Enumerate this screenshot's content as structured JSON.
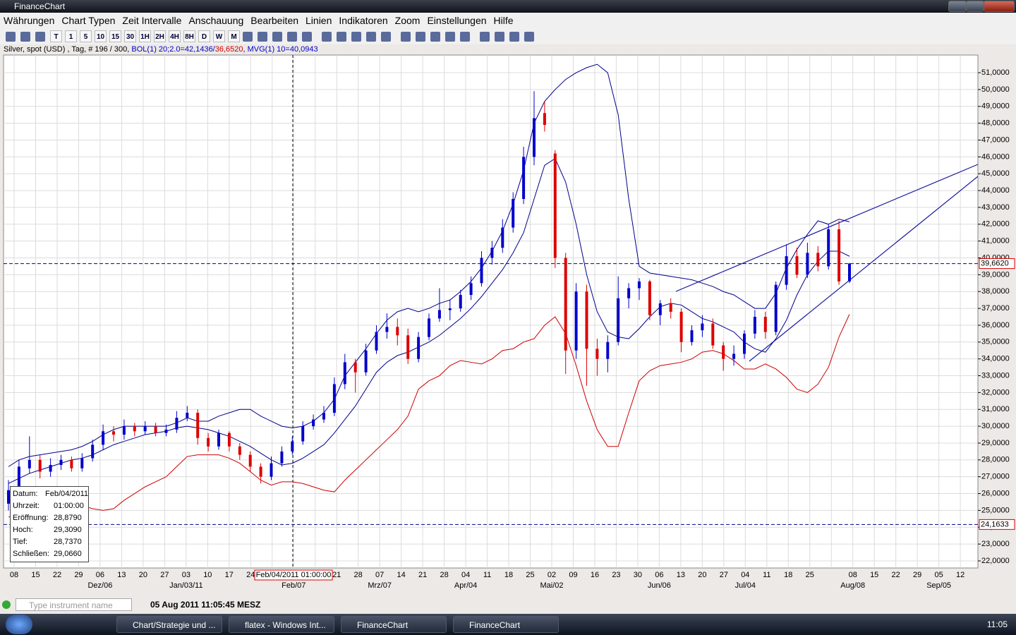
{
  "window": {
    "title": "FinanceChart"
  },
  "menu": [
    "Währungen",
    "Chart Typen",
    "Zeit Intervalle",
    "Anschauung",
    "Bearbeiten",
    "Linien",
    "Indikatoren",
    "Zoom",
    "Einstellungen",
    "Hilfe"
  ],
  "toolbar": {
    "intervals": [
      "T",
      "1",
      "5",
      "10",
      "15",
      "30",
      "1H",
      "2H",
      "4H",
      "8H",
      "D",
      "W",
      "M"
    ]
  },
  "info": {
    "instrument": "Silver, spot (USD) , Tag, # 196 / 300,",
    "bol": "BOL(1) 20;2.0=42,1436/",
    "bol_low": "36,6520",
    "mvg": ", MVG(1) 10=40,0943"
  },
  "chart_data": {
    "type": "candlestick",
    "up_color": "#0000cc",
    "down_color": "#dd0000",
    "grid": true,
    "ylim": [
      21.58,
      52.05
    ],
    "yticks": [
      {
        "value": 22,
        "label": "22,0000"
      },
      {
        "value": 23,
        "label": "23,0000"
      },
      {
        "value": 24,
        "label": "24,0000"
      },
      {
        "value": 25,
        "label": "25,0000"
      },
      {
        "value": 26,
        "label": "26,0000"
      },
      {
        "value": 27,
        "label": "27,0000"
      },
      {
        "value": 28,
        "label": "28,0000"
      },
      {
        "value": 29,
        "label": "29,0000"
      },
      {
        "value": 30,
        "label": "30,0000"
      },
      {
        "value": 31,
        "label": "31,0000"
      },
      {
        "value": 32,
        "label": "32,0000"
      },
      {
        "value": 33,
        "label": "33,0000"
      },
      {
        "value": 34,
        "label": "34,0000"
      },
      {
        "value": 35,
        "label": "35,0000"
      },
      {
        "value": 36,
        "label": "36,0000"
      },
      {
        "value": 37,
        "label": "37,0000"
      },
      {
        "value": 38,
        "label": "38,0000"
      },
      {
        "value": 39,
        "label": "39,0000"
      },
      {
        "value": 40,
        "label": "40,0000"
      },
      {
        "value": 41,
        "label": "41,0000"
      },
      {
        "value": 42,
        "label": "42,0000"
      },
      {
        "value": 43,
        "label": "43,0000"
      },
      {
        "value": 44,
        "label": "44,0000"
      },
      {
        "value": 45,
        "label": "45,0000"
      },
      {
        "value": 46,
        "label": "46,0000"
      },
      {
        "value": 47,
        "label": "47,0000"
      },
      {
        "value": 48,
        "label": "48,0000"
      },
      {
        "value": 49,
        "label": "49,0000"
      },
      {
        "value": 50,
        "label": "50,0000"
      },
      {
        "value": 51,
        "label": "51,0000"
      }
    ],
    "x_labels": [
      "08",
      "15",
      "22",
      "29",
      "06",
      "13",
      "20",
      "27",
      "03",
      "10",
      "17",
      "24",
      null,
      null,
      null,
      "21",
      "28",
      "07",
      "14",
      "21",
      "28",
      "04",
      "11",
      "18",
      "25",
      "02",
      "09",
      "16",
      "23",
      "30",
      "06",
      "13",
      "20",
      "27",
      "04",
      "11",
      "18",
      "25",
      null,
      "08",
      "15",
      "22",
      "29",
      "05",
      "12"
    ],
    "month_labels": [
      null,
      null,
      null,
      null,
      "Dez/06",
      null,
      null,
      null,
      "Jan/03/11",
      null,
      null,
      null,
      null,
      "Feb/07",
      null,
      null,
      null,
      "Mrz/07",
      null,
      null,
      null,
      "Apr/04",
      null,
      null,
      null,
      "Mai/02",
      null,
      null,
      null,
      null,
      "Jun/06",
      null,
      null,
      null,
      "Jul/04",
      null,
      null,
      null,
      null,
      "Aug/08",
      null,
      null,
      null,
      "Sep/05",
      null
    ],
    "candles": [
      [
        25.4,
        26.8,
        25.0,
        26.2
      ],
      [
        26.3,
        28.0,
        26.0,
        27.6
      ],
      [
        27.5,
        29.4,
        27.2,
        28.0
      ],
      [
        28.0,
        28.3,
        26.9,
        27.3
      ],
      [
        27.3,
        28.1,
        27.0,
        27.7
      ],
      [
        27.7,
        28.3,
        27.4,
        28.0
      ],
      [
        28.0,
        28.2,
        27.3,
        27.5
      ],
      [
        27.5,
        28.4,
        27.3,
        28.1
      ],
      [
        28.1,
        29.2,
        27.9,
        28.9
      ],
      [
        28.9,
        30.1,
        28.6,
        29.7
      ],
      [
        29.7,
        30.0,
        29.1,
        29.5
      ],
      [
        29.5,
        30.4,
        29.2,
        30.0
      ],
      [
        30.0,
        30.2,
        29.4,
        29.7
      ],
      [
        29.7,
        30.3,
        29.5,
        30.0
      ],
      [
        30.0,
        30.2,
        29.4,
        29.6
      ],
      [
        29.6,
        30.1,
        29.4,
        29.8
      ],
      [
        29.8,
        30.9,
        29.6,
        30.5
      ],
      [
        30.5,
        31.2,
        30.3,
        30.8
      ],
      [
        30.8,
        31.0,
        28.9,
        29.3
      ],
      [
        29.3,
        29.6,
        28.5,
        28.8
      ],
      [
        28.8,
        29.8,
        28.6,
        29.6
      ],
      [
        29.6,
        29.7,
        28.5,
        28.8
      ],
      [
        28.8,
        29.0,
        28.0,
        28.3
      ],
      [
        28.3,
        28.5,
        27.3,
        27.6
      ],
      [
        27.6,
        27.8,
        26.6,
        27.0
      ],
      [
        27.0,
        28.2,
        26.8,
        27.8
      ],
      [
        27.8,
        28.8,
        27.6,
        28.5
      ],
      [
        28.5,
        29.4,
        28.3,
        29.1
      ],
      [
        29.1,
        30.3,
        28.9,
        30.0
      ],
      [
        30.0,
        30.7,
        29.8,
        30.4
      ],
      [
        30.4,
        31.2,
        30.2,
        30.8
      ],
      [
        30.8,
        32.9,
        30.6,
        32.5
      ],
      [
        32.5,
        34.3,
        32.2,
        33.8
      ],
      [
        33.8,
        34.0,
        32.0,
        33.2
      ],
      [
        33.2,
        34.9,
        33.0,
        34.5
      ],
      [
        34.5,
        36.0,
        34.3,
        35.6
      ],
      [
        35.6,
        36.7,
        35.2,
        35.9
      ],
      [
        35.9,
        36.4,
        34.8,
        35.4
      ],
      [
        35.4,
        35.8,
        33.7,
        34.0
      ],
      [
        34.0,
        35.6,
        33.8,
        35.3
      ],
      [
        35.3,
        36.7,
        35.1,
        36.4
      ],
      [
        36.4,
        38.2,
        36.2,
        36.9
      ],
      [
        36.9,
        37.5,
        36.3,
        37.0
      ],
      [
        37.0,
        38.1,
        36.8,
        37.8
      ],
      [
        37.8,
        38.9,
        37.5,
        38.5
      ],
      [
        38.5,
        40.4,
        38.3,
        40.0
      ],
      [
        40.0,
        41.0,
        39.6,
        40.6
      ],
      [
        40.6,
        42.3,
        40.3,
        41.8
      ],
      [
        41.8,
        43.9,
        41.5,
        43.5
      ],
      [
        43.5,
        46.6,
        43.2,
        46.0
      ],
      [
        46.0,
        49.9,
        45.5,
        48.3
      ],
      [
        48.6,
        49.3,
        47.5,
        47.9
      ],
      [
        46.2,
        46.4,
        39.4,
        40.0
      ],
      [
        40.0,
        40.3,
        33.1,
        34.5
      ],
      [
        34.5,
        38.5,
        34.0,
        38.0
      ],
      [
        38.0,
        38.4,
        32.4,
        34.6
      ],
      [
        34.6,
        35.2,
        33.0,
        34.0
      ],
      [
        34.0,
        35.4,
        33.2,
        35.0
      ],
      [
        35.0,
        38.9,
        34.8,
        37.6
      ],
      [
        37.6,
        38.5,
        37.0,
        38.2
      ],
      [
        38.2,
        38.8,
        37.5,
        38.6
      ],
      [
        38.6,
        38.7,
        36.3,
        36.6
      ],
      [
        36.6,
        37.5,
        36.0,
        37.3
      ],
      [
        37.3,
        37.6,
        36.4,
        36.8
      ],
      [
        36.8,
        37.0,
        34.4,
        35.0
      ],
      [
        35.0,
        36.0,
        34.8,
        35.7
      ],
      [
        35.7,
        36.6,
        35.3,
        36.1
      ],
      [
        36.1,
        36.4,
        34.6,
        34.8
      ],
      [
        34.8,
        35.0,
        33.3,
        34.0
      ],
      [
        34.0,
        34.8,
        33.6,
        34.3
      ],
      [
        34.3,
        35.7,
        34.0,
        35.5
      ],
      [
        35.5,
        36.9,
        35.2,
        36.5
      ],
      [
        36.5,
        36.8,
        35.2,
        35.6
      ],
      [
        35.6,
        38.6,
        35.4,
        38.4
      ],
      [
        38.4,
        40.8,
        38.1,
        40.1
      ],
      [
        40.1,
        40.6,
        38.8,
        39.0
      ],
      [
        39.0,
        40.9,
        38.8,
        40.3
      ],
      [
        40.3,
        40.7,
        39.2,
        39.5
      ],
      [
        39.5,
        42.0,
        39.3,
        41.7
      ],
      [
        41.7,
        42.2,
        38.4,
        38.6
      ],
      [
        38.6,
        39.7,
        38.5,
        39.662
      ]
    ],
    "overlays": [
      {
        "color": "#00008b",
        "values": [
          27.6,
          28.0,
          28.2,
          28.3,
          28.4,
          28.5,
          28.6,
          28.8,
          29.1,
          29.5,
          29.8,
          30.0,
          30.0,
          30.0,
          30.0,
          30.0,
          30.2,
          30.5,
          30.3,
          30.3,
          30.6,
          30.8,
          31.0,
          31.0,
          30.6,
          30.3,
          30.0,
          29.9,
          30.0,
          30.3,
          30.8,
          31.6,
          33.0,
          33.8,
          34.6,
          35.5,
          36.3,
          36.8,
          37.0,
          36.8,
          37.0,
          37.3,
          37.5,
          38.0,
          38.6,
          39.4,
          40.4,
          41.6,
          43.2,
          45.2,
          48.0,
          49.3,
          50.0,
          50.6,
          51.0,
          51.3,
          51.5,
          51.0,
          48.5,
          43.5,
          39.5,
          39.1,
          39.0,
          38.9,
          38.8,
          38.7,
          38.5,
          38.3,
          38.0,
          37.8,
          37.4,
          37.0,
          37.0,
          37.9,
          39.4,
          40.5,
          41.4,
          42.2,
          42.0,
          42.3,
          42.1436
        ]
      },
      {
        "color": "#00008b",
        "values": [
          26.6,
          26.9,
          27.2,
          27.4,
          27.6,
          27.8,
          28.0,
          28.1,
          28.3,
          28.6,
          28.9,
          29.1,
          29.3,
          29.5,
          29.6,
          29.7,
          29.9,
          30.0,
          29.9,
          29.8,
          29.6,
          29.4,
          29.1,
          28.8,
          28.4,
          28.0,
          27.7,
          27.8,
          28.1,
          28.5,
          28.9,
          29.6,
          30.4,
          31.2,
          32.2,
          33.2,
          33.8,
          34.2,
          34.4,
          34.7,
          35.0,
          35.4,
          35.9,
          36.4,
          37.0,
          37.7,
          38.5,
          39.3,
          40.3,
          41.5,
          43.5,
          45.5,
          45.9,
          44.5,
          42.0,
          39.0,
          36.8,
          35.6,
          35.3,
          35.2,
          35.8,
          36.5,
          37.1,
          37.3,
          37.2,
          36.8,
          36.4,
          36.2,
          35.9,
          35.6,
          35.0,
          34.6,
          34.4,
          35.2,
          36.3,
          37.8,
          39.0,
          39.8,
          40.4,
          40.4,
          40.0943
        ]
      },
      {
        "color": "#cc0000",
        "values": [
          24.6,
          24.8,
          25.0,
          25.2,
          25.3,
          25.4,
          25.4,
          25.3,
          25.1,
          25.0,
          25.1,
          25.6,
          26.0,
          26.4,
          26.7,
          27.0,
          27.6,
          28.2,
          28.3,
          28.3,
          28.3,
          28.1,
          27.8,
          27.3,
          26.8,
          26.5,
          26.7,
          26.7,
          26.6,
          26.4,
          26.2,
          26.1,
          26.8,
          27.4,
          28.0,
          28.6,
          29.2,
          29.8,
          30.6,
          32.2,
          32.7,
          33.0,
          33.6,
          33.9,
          33.8,
          33.7,
          34.0,
          34.5,
          34.6,
          35.0,
          35.2,
          36.0,
          36.5,
          35.5,
          33.6,
          31.5,
          29.8,
          28.8,
          28.8,
          30.8,
          32.7,
          33.3,
          33.6,
          33.7,
          33.8,
          34.0,
          34.4,
          34.5,
          34.3,
          33.9,
          33.4,
          33.4,
          33.7,
          33.4,
          32.9,
          32.2,
          32.0,
          32.5,
          33.5,
          35.3,
          36.652
        ]
      }
    ],
    "hlines": [
      {
        "value": 39.662,
        "label": "39,6620"
      },
      {
        "value": 24.1633,
        "label": "24,1633"
      }
    ],
    "crosshair_label": "Feb/04/2011 01:00:00",
    "tooltip": [
      [
        "Datum:",
        "Feb/04/2011"
      ],
      [
        "Uhrzeit:",
        "01:00:00"
      ],
      [
        "Eröffnung:",
        "28,8790"
      ],
      [
        "Hoch:",
        "29,3090"
      ],
      [
        "Tief:",
        "28,7370"
      ],
      [
        "Schließen:",
        "29,0660"
      ]
    ]
  },
  "status": {
    "search_placeholder": "Type instrument name",
    "datetime": "05 Aug 2011 11:05:45 MESZ"
  },
  "taskbar": {
    "tasks": [
      "Chart/Strategie und ...",
      "flatex - Windows Int...",
      "FinanceChart",
      "FinanceChart"
    ],
    "clock": "11:05"
  }
}
